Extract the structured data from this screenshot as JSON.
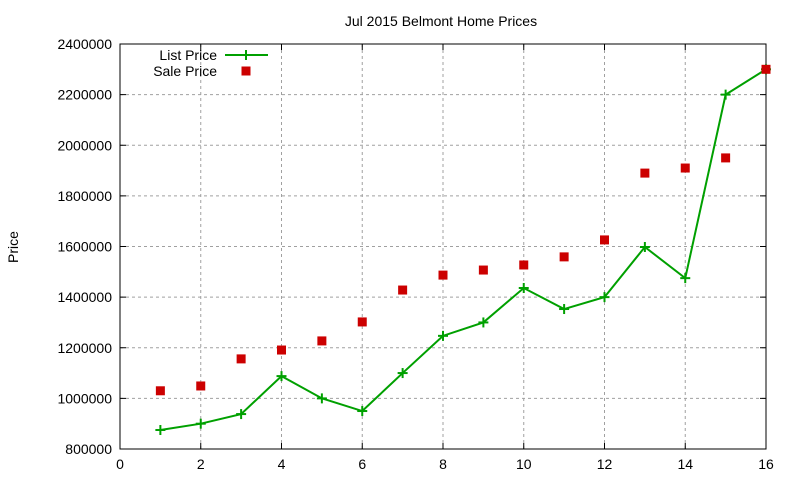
{
  "chart_data": {
    "type": "line",
    "title": "Jul 2015 Belmont Home Prices",
    "xlabel": "",
    "ylabel": "Price",
    "xlim": [
      0,
      16
    ],
    "ylim": [
      800000,
      2400000
    ],
    "xticks": [
      0,
      2,
      4,
      6,
      8,
      10,
      12,
      14,
      16
    ],
    "yticks": [
      800000,
      1000000,
      1200000,
      1400000,
      1600000,
      1800000,
      2000000,
      2200000,
      2400000
    ],
    "grid": true,
    "legend_position": "top-left",
    "x": [
      1,
      2,
      3,
      4,
      5,
      6,
      7,
      8,
      9,
      10,
      11,
      12,
      13,
      14,
      15,
      16
    ],
    "series": [
      {
        "name": "List Price",
        "style": "linespoints",
        "marker": "plus",
        "color": "#00a000",
        "values": [
          875000,
          900000,
          938000,
          1088000,
          1000000,
          950000,
          1100000,
          1247000,
          1300000,
          1436000,
          1353000,
          1400000,
          1598000,
          1475000,
          2200000,
          2300000
        ]
      },
      {
        "name": "Sale Price",
        "style": "points",
        "marker": "square",
        "color": "#cc0000",
        "values": [
          1030000,
          1049000,
          1156000,
          1191000,
          1227000,
          1302000,
          1428000,
          1487000,
          1507000,
          1527000,
          1559000,
          1626000,
          1890000,
          1910000,
          1950000,
          2300000
        ]
      }
    ]
  }
}
